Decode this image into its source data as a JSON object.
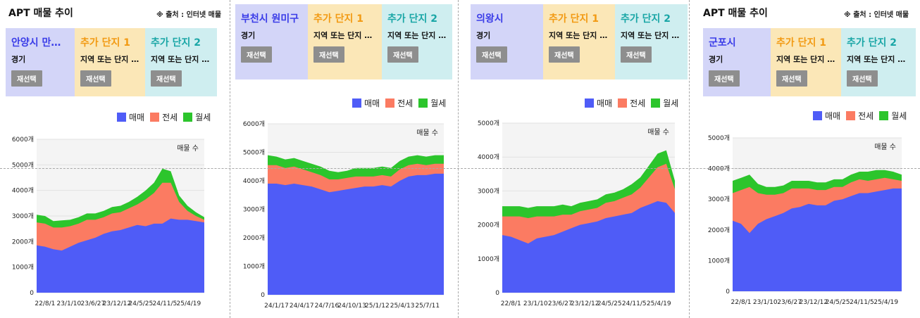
{
  "source_text": "※ 출처 : 인터넷 매물",
  "page_title": "APT 매물 추이",
  "button_label": "재선택",
  "legend": [
    {
      "label": "매매",
      "color": "#4f5cf7"
    },
    {
      "label": "전세",
      "color": "#fb7b62"
    },
    {
      "label": "월세",
      "color": "#2cc52c"
    }
  ],
  "colors": {
    "primary_box": "#d3d5f8",
    "added1_box": "#fbe7b7",
    "added2_box": "#cfeef0",
    "primary_text": "#3a3ce8",
    "added1_text": "#f29a13",
    "added2_text": "#1aa6a6",
    "button_bg": "#8e8e8e"
  },
  "panels": [
    {
      "id": "p1",
      "title": "APT 매물 추이",
      "source": "※ 출처 : 인터넷 매물",
      "primary": {
        "name": "안양시 만안구",
        "sub": "경기"
      },
      "added1": {
        "name": "추가 단지 1",
        "sub": "지역 또는 단지 …"
      },
      "added2": {
        "name": "추가 단지 2",
        "sub": "지역 또는 단지 …"
      },
      "chart_data": {
        "type": "area",
        "stacked": true,
        "label": "매물 수",
        "ylim": [
          0,
          6000
        ],
        "yticks": [
          0,
          1000,
          2000,
          3000,
          4000,
          5000,
          6000
        ],
        "ytick_labels": [
          "0",
          "1000개",
          "2000개",
          "3000개",
          "4000개",
          "5000개",
          "6000개"
        ],
        "xtick_labels": [
          "22/8/1",
          "23/1/10",
          "23/6/27",
          "23/12/12",
          "24/5/25",
          "24/11/5",
          "25/4/19"
        ],
        "x": [
          0,
          0.05,
          0.1,
          0.15,
          0.2,
          0.25,
          0.3,
          0.35,
          0.4,
          0.45,
          0.5,
          0.55,
          0.6,
          0.65,
          0.7,
          0.75,
          0.8,
          0.85,
          0.9,
          0.95,
          1
        ],
        "series": [
          {
            "name": "매매",
            "color": "#4f5cf7",
            "values": [
              1850,
              1800,
              1700,
              1650,
              1800,
              1950,
              2050,
              2150,
              2300,
              2400,
              2450,
              2550,
              2650,
              2600,
              2700,
              2700,
              2900,
              2850,
              2850,
              2800,
              2750
            ]
          },
          {
            "name": "전세",
            "color": "#fb7b62",
            "values": [
              900,
              900,
              850,
              900,
              800,
              750,
              800,
              700,
              650,
              700,
              700,
              750,
              800,
              1050,
              1200,
              1600,
              1400,
              700,
              350,
              200,
              100
            ]
          },
          {
            "name": "월세",
            "color": "#2cc52c",
            "values": [
              300,
              300,
              250,
              280,
              250,
              250,
              250,
              250,
              250,
              250,
              250,
              250,
              300,
              350,
              400,
              550,
              450,
              250,
              200,
              150,
              100
            ]
          }
        ]
      }
    },
    {
      "id": "p2",
      "primary": {
        "name": "부천시 원미구",
        "sub": "경기"
      },
      "added1": {
        "name": "추가 단지 1",
        "sub": "지역 또는 단지 …"
      },
      "added2": {
        "name": "추가 단지 2",
        "sub": "지역 또는 단지 …"
      },
      "chart_data": {
        "type": "area",
        "stacked": true,
        "label": "매물 수",
        "ylim": [
          0,
          6000
        ],
        "yticks": [
          0,
          1000,
          2000,
          3000,
          4000,
          5000,
          6000
        ],
        "ytick_labels": [
          "0",
          "1000개",
          "2000개",
          "3000개",
          "4000개",
          "5000개",
          "6000개"
        ],
        "xtick_labels": [
          "24/1/17",
          "24/4/17",
          "24/7/16",
          "24/10/13",
          "25/1/12",
          "25/4/13",
          "25/7/11"
        ],
        "x": [
          0,
          0.05,
          0.1,
          0.15,
          0.2,
          0.25,
          0.3,
          0.35,
          0.4,
          0.45,
          0.5,
          0.55,
          0.6,
          0.65,
          0.7,
          0.75,
          0.8,
          0.85,
          0.9,
          0.95,
          1
        ],
        "series": [
          {
            "name": "매매",
            "color": "#4f5cf7",
            "values": [
              3900,
              3900,
              3850,
              3900,
              3850,
              3800,
              3700,
              3600,
              3650,
              3700,
              3750,
              3800,
              3800,
              3850,
              3800,
              4000,
              4150,
              4200,
              4200,
              4250,
              4250
            ]
          },
          {
            "name": "전세",
            "color": "#fb7b62",
            "values": [
              650,
              650,
              600,
              600,
              550,
              500,
              500,
              450,
              400,
              400,
              400,
              350,
              350,
              350,
              350,
              400,
              400,
              400,
              350,
              350,
              350
            ]
          },
          {
            "name": "월세",
            "color": "#2cc52c",
            "values": [
              350,
              300,
              300,
              300,
              300,
              300,
              300,
              300,
              250,
              250,
              300,
              300,
              300,
              300,
              300,
              300,
              300,
              300,
              300,
              300,
              300
            ]
          }
        ]
      }
    },
    {
      "id": "p3",
      "primary": {
        "name": "의왕시",
        "sub": "경기"
      },
      "added1": {
        "name": "추가 단지 1",
        "sub": "지역 또는 단지 …"
      },
      "added2": {
        "name": "추가 단지 2",
        "sub": "지역 또는 단지 …"
      },
      "chart_data": {
        "type": "area",
        "stacked": true,
        "label": "매물 수",
        "ylim": [
          0,
          5000
        ],
        "yticks": [
          0,
          1000,
          2000,
          3000,
          4000,
          5000
        ],
        "ytick_labels": [
          "0",
          "1000개",
          "2000개",
          "3000개",
          "4000개",
          "5000개"
        ],
        "xtick_labels": [
          "22/8/1",
          "23/1/10",
          "23/6/27",
          "23/12/12",
          "24/5/25",
          "24/11/5",
          "25/4/19"
        ],
        "x": [
          0,
          0.05,
          0.1,
          0.15,
          0.2,
          0.25,
          0.3,
          0.35,
          0.4,
          0.45,
          0.5,
          0.55,
          0.6,
          0.65,
          0.7,
          0.75,
          0.8,
          0.85,
          0.9,
          0.95,
          1
        ],
        "series": [
          {
            "name": "매매",
            "color": "#4f5cf7",
            "values": [
              1700,
              1650,
              1550,
              1450,
              1600,
              1650,
              1700,
              1800,
              1900,
              2000,
              2050,
              2100,
              2200,
              2250,
              2300,
              2350,
              2500,
              2600,
              2700,
              2650,
              2350
            ]
          },
          {
            "name": "전세",
            "color": "#fb7b62",
            "values": [
              550,
              600,
              700,
              750,
              650,
              600,
              550,
              500,
              400,
              400,
              400,
              400,
              450,
              450,
              500,
              550,
              600,
              800,
              1000,
              1150,
              700
            ]
          },
          {
            "name": "월세",
            "color": "#2cc52c",
            "values": [
              300,
              300,
              300,
              300,
              300,
              300,
              300,
              300,
              250,
              250,
              250,
              250,
              250,
              250,
              250,
              300,
              300,
              350,
              400,
              400,
              250
            ]
          }
        ]
      }
    },
    {
      "id": "p4",
      "title": "APT 매물 추이",
      "source": "※ 출처 : 인터넷 매물",
      "primary": {
        "name": "군포시",
        "sub": "경기"
      },
      "added1": {
        "name": "추가 단지 1",
        "sub": "지역 또는 단지 …"
      },
      "added2": {
        "name": "추가 단지 2",
        "sub": "지역 또는 단지 …"
      },
      "chart_data": {
        "type": "area",
        "stacked": true,
        "label": "매물 수",
        "ylim": [
          0,
          5000
        ],
        "yticks": [
          0,
          1000,
          2000,
          3000,
          4000,
          5000
        ],
        "ytick_labels": [
          "0",
          "1000개",
          "2000개",
          "3000개",
          "4000개",
          "5000개"
        ],
        "xtick_labels": [
          "22/8/1",
          "23/1/10",
          "23/6/27",
          "23/12/12",
          "24/5/25",
          "24/11/5",
          "25/4/19"
        ],
        "x": [
          0,
          0.05,
          0.1,
          0.15,
          0.2,
          0.25,
          0.3,
          0.35,
          0.4,
          0.45,
          0.5,
          0.55,
          0.6,
          0.65,
          0.7,
          0.75,
          0.8,
          0.85,
          0.9,
          0.95,
          1
        ],
        "series": [
          {
            "name": "매매",
            "color": "#4f5cf7",
            "values": [
              2300,
              2200,
              1900,
              2200,
              2350,
              2450,
              2550,
              2700,
              2750,
              2850,
              2800,
              2800,
              2950,
              3000,
              3100,
              3200,
              3200,
              3250,
              3300,
              3350,
              3350
            ]
          },
          {
            "name": "전세",
            "color": "#fb7b62",
            "values": [
              900,
              1100,
              1500,
              1000,
              800,
              700,
              650,
              650,
              600,
              500,
              500,
              500,
              450,
              400,
              450,
              450,
              400,
              400,
              400,
              300,
              250
            ]
          },
          {
            "name": "월세",
            "color": "#2cc52c",
            "values": [
              400,
              400,
              400,
              300,
              250,
              250,
              250,
              250,
              250,
              250,
              250,
              250,
              250,
              250,
              250,
              250,
              300,
              300,
              250,
              250,
              200
            ]
          }
        ]
      }
    }
  ]
}
